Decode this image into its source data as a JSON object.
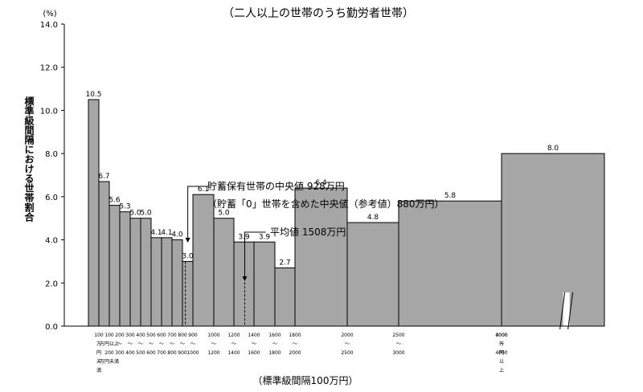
{
  "chart_data": {
    "type": "bar",
    "title": "（二人以上の世帯のうち勤労者世帯）",
    "unit_label": "(%)",
    "ylabel": "標準級間隔における世帯割合",
    "xlabel": "（標準級間隔100万円）",
    "ylim": [
      0,
      14
    ],
    "y_ticks": [
      "0.0",
      "2.0",
      "4.0",
      "6.0",
      "8.0",
      "10.0",
      "12.0",
      "14.0"
    ],
    "y_tick_values": [
      0,
      2,
      4,
      6,
      8,
      10,
      12,
      14
    ],
    "bins": [
      {
        "from": 0,
        "to": 100,
        "value": 10.5
      },
      {
        "from": 100,
        "to": 200,
        "value": 6.7
      },
      {
        "from": 200,
        "to": 300,
        "value": 5.6
      },
      {
        "from": 300,
        "to": 400,
        "value": 5.3
      },
      {
        "from": 400,
        "to": 500,
        "value": 5.0
      },
      {
        "from": 500,
        "to": 600,
        "value": 5.0
      },
      {
        "from": 600,
        "to": 700,
        "value": 4.1
      },
      {
        "from": 700,
        "to": 800,
        "value": 4.1
      },
      {
        "from": 800,
        "to": 900,
        "value": 4.0
      },
      {
        "from": 900,
        "to": 1000,
        "value": 3.0
      },
      {
        "from": 1000,
        "to": 1200,
        "value": 6.1
      },
      {
        "from": 1200,
        "to": 1400,
        "value": 5.0
      },
      {
        "from": 1400,
        "to": 1600,
        "value": 3.9
      },
      {
        "from": 1600,
        "to": 1800,
        "value": 3.9
      },
      {
        "from": 1800,
        "to": 2000,
        "value": 2.7
      },
      {
        "from": 2000,
        "to": 2500,
        "value": 6.4
      },
      {
        "from": 2500,
        "to": 3000,
        "value": 4.8
      },
      {
        "from": 3000,
        "to": 4000,
        "value": 5.8
      },
      {
        "from": 4000,
        "to": null,
        "value": 8.0
      }
    ],
    "x_tick_labels": [
      [
        "100",
        "万",
        "円",
        "未",
        "満"
      ],
      [
        "100",
        "万円以上",
        "200",
        "万円未満"
      ],
      [
        "200",
        "〜",
        "300"
      ],
      [
        "300",
        "〜",
        "400"
      ],
      [
        "400",
        "〜",
        "500"
      ],
      [
        "500",
        "〜",
        "600"
      ],
      [
        "600",
        "〜",
        "700"
      ],
      [
        "700",
        "〜",
        "800"
      ],
      [
        "800",
        "〜",
        "900"
      ],
      [
        "900",
        "〜",
        "1000"
      ],
      [
        "1000",
        "〜",
        "1200"
      ],
      [
        "1200",
        "〜",
        "1400"
      ],
      [
        "1400",
        "〜",
        "1600"
      ],
      [
        "1600",
        "〜",
        "1800"
      ],
      [
        "1800",
        "〜",
        "2000"
      ],
      [
        "2000",
        "〜",
        "2500"
      ],
      [
        "2500",
        "〜",
        "3000"
      ],
      [
        "3000",
        "〜",
        "4000"
      ],
      [
        "4000",
        "万",
        "円",
        "以",
        "上"
      ]
    ],
    "annotations": [
      {
        "line1": "貯蓄保有世帯の中央値 928万円",
        "line2": "（貯蓄「0」世帯を含めた中央値（参考値）880万円）",
        "x": 928
      },
      {
        "line1": "平均値 1508万円",
        "x": 1508
      }
    ],
    "grid": false,
    "colors": {
      "bar_fill": "#a6a6a6",
      "bar_stroke": "#000000",
      "axis": "#000000"
    }
  }
}
